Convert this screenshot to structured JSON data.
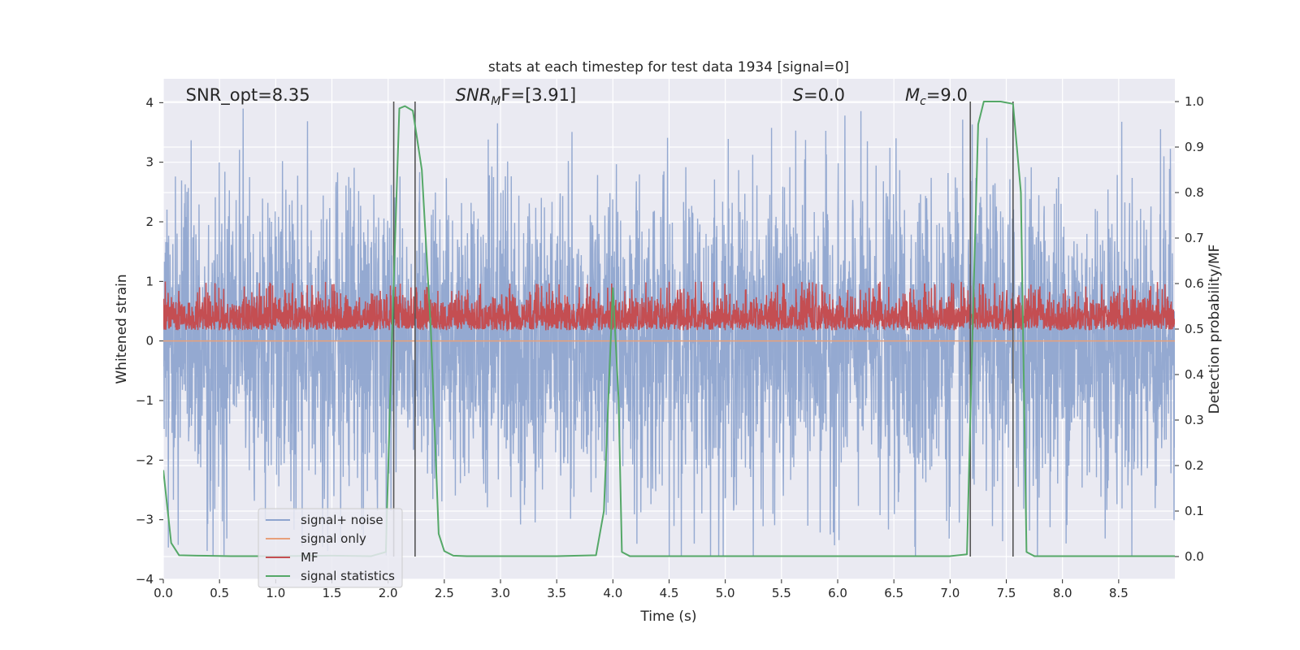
{
  "chart_data": {
    "type": "line",
    "title": "stats at each timestep for test data 1934 [signal=0]",
    "xlabel": "Time (s)",
    "ylabel": "Whitened strain",
    "y2label": "Detection probability/MF",
    "xlim": [
      0.0,
      9.0
    ],
    "ylim": [
      -4.0,
      4.4
    ],
    "y2lim": [
      -0.05,
      1.05
    ],
    "x_ticks": [
      0.0,
      0.5,
      1.0,
      1.5,
      2.0,
      2.5,
      3.0,
      3.5,
      4.0,
      4.5,
      5.0,
      5.5,
      6.0,
      6.5,
      7.0,
      7.5,
      8.0,
      8.5
    ],
    "x_tick_labels": [
      "0.0",
      "0.5",
      "1.0",
      "1.5",
      "2.0",
      "2.5",
      "3.0",
      "3.5",
      "4.0",
      "4.5",
      "5.0",
      "5.5",
      "6.0",
      "6.5",
      "7.0",
      "7.5",
      "8.0",
      "8.5"
    ],
    "y_ticks": [
      -4,
      -3,
      -2,
      -1,
      0,
      1,
      2,
      3,
      4
    ],
    "y_tick_labels": [
      "−4",
      "−3",
      "−2",
      "−1",
      "0",
      "1",
      "2",
      "3",
      "4"
    ],
    "y2_ticks": [
      0.0,
      0.1,
      0.2,
      0.3,
      0.4,
      0.5,
      0.6,
      0.7,
      0.8,
      0.9,
      1.0
    ],
    "y2_tick_labels": [
      "0.0",
      "0.1",
      "0.2",
      "0.3",
      "0.4",
      "0.5",
      "0.6",
      "0.7",
      "0.8",
      "0.9",
      "1.0"
    ],
    "grid": true,
    "annotations": [
      {
        "id": "snr-opt",
        "text": "SNR_opt=8.35",
        "x": 0.2
      },
      {
        "id": "snr-mf",
        "text": "SNR",
        "sub": "M",
        "rest": "F=[3.91]",
        "x": 2.6
      },
      {
        "id": "s-value",
        "text": "S",
        "rest": "=0.0",
        "x": 5.6
      },
      {
        "id": "mc-value",
        "text": "M",
        "sub": "c",
        "rest": "=9.0",
        "x": 6.6
      }
    ],
    "vertical_lines": [
      2.05,
      2.24,
      7.18,
      7.56
    ],
    "vertical_line_color": "#555555",
    "legend_placement": "lower-left",
    "series": [
      {
        "name": "signal+ noise",
        "color": "#8fa5cf",
        "style": "noise",
        "amplitude": 1.3,
        "spike_max": 3.9,
        "samples": 3600
      },
      {
        "name": "signal only",
        "color": "#e8a07a",
        "style": "flat",
        "value": 0.0
      },
      {
        "name": "MF",
        "color": "#c44e52",
        "style": "mf",
        "base": 0.18,
        "amplitude": 0.55,
        "samples": 3600
      },
      {
        "name": "signal statistics",
        "color": "#55a868",
        "axis": "right",
        "x": [
          0.0,
          0.07,
          0.14,
          0.3,
          0.6,
          1.0,
          1.5,
          1.85,
          1.98,
          2.03,
          2.1,
          2.15,
          2.22,
          2.3,
          2.38,
          2.45,
          2.5,
          2.58,
          2.7,
          3.0,
          3.5,
          3.85,
          3.92,
          3.96,
          4.0,
          4.05,
          4.08,
          4.15,
          4.3,
          5.0,
          6.0,
          7.0,
          7.15,
          7.2,
          7.25,
          7.3,
          7.45,
          7.56,
          7.63,
          7.68,
          7.75,
          8.0,
          9.0
        ],
        "values": [
          0.19,
          0.03,
          0.003,
          0.002,
          0.001,
          0.001,
          0.002,
          0.001,
          0.01,
          0.45,
          0.985,
          0.99,
          0.98,
          0.85,
          0.5,
          0.05,
          0.012,
          0.002,
          0.001,
          0.001,
          0.001,
          0.003,
          0.1,
          0.35,
          0.59,
          0.35,
          0.01,
          0.001,
          0.001,
          0.001,
          0.001,
          0.001,
          0.005,
          0.5,
          0.95,
          1.0,
          1.0,
          0.995,
          0.8,
          0.01,
          0.001,
          0.001,
          0.001
        ]
      }
    ]
  }
}
